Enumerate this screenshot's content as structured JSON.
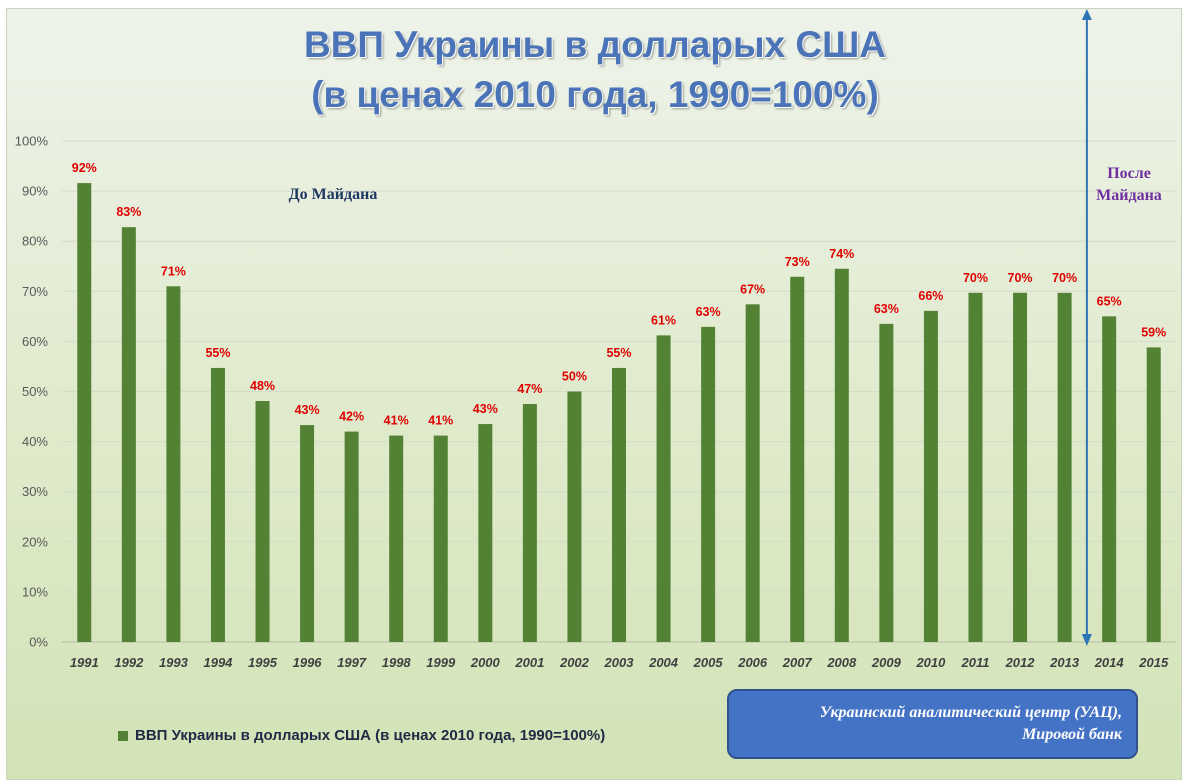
{
  "chart_data": {
    "type": "bar",
    "title": [
      "ВВП Украины в долларых США",
      "(в  ценах 2010 года, 1990=100%)"
    ],
    "categories": [
      "1991",
      "1992",
      "1993",
      "1994",
      "1995",
      "1996",
      "1997",
      "1998",
      "1999",
      "2000",
      "2001",
      "2002",
      "2003",
      "2004",
      "2005",
      "2006",
      "2007",
      "2008",
      "2009",
      "2010",
      "2011",
      "2012",
      "2013",
      "2014",
      "2015"
    ],
    "values": [
      91.6,
      82.8,
      71.0,
      54.7,
      48.1,
      43.3,
      42.0,
      41.2,
      41.2,
      43.5,
      47.5,
      50.0,
      54.7,
      61.2,
      62.9,
      67.4,
      72.9,
      74.5,
      63.5,
      66.1,
      69.7,
      69.7,
      69.7,
      65.0,
      58.8
    ],
    "data_labels": [
      "92%",
      "83%",
      "71%",
      "55%",
      "48%",
      "43%",
      "42%",
      "41%",
      "41%",
      "43%",
      "47%",
      "50%",
      "55%",
      "61%",
      "63%",
      "67%",
      "73%",
      "74%",
      "63%",
      "66%",
      "70%",
      "70%",
      "70%",
      "65%",
      "59%"
    ],
    "ylim": [
      0,
      100
    ],
    "yticks": [
      0,
      10,
      20,
      30,
      40,
      50,
      60,
      70,
      80,
      90,
      100
    ],
    "ytick_labels": [
      "0%",
      "10%",
      "20%",
      "30%",
      "40%",
      "50%",
      "60%",
      "70%",
      "80%",
      "90%",
      "100%"
    ],
    "grid": true,
    "legend": {
      "position": "bottom-left",
      "label": "ВВП Украины в долларых США (в ценах 2010 года, 1990=100%)"
    },
    "bar_color": "#548235",
    "annotations": {
      "before": "До Майдана",
      "after": [
        "После",
        "Майдана"
      ],
      "divider_after_category": "2013",
      "divider_color": "#2e75b6"
    }
  },
  "source": [
    "Украинский аналитический центр (УАЦ),",
    "Мировой банк"
  ],
  "colors": {
    "title": "#4a73b8",
    "data_label": "#e00000",
    "annotation_before": "#1f3864",
    "annotation_after": "#7030a0",
    "source_box": "#4472c4"
  }
}
